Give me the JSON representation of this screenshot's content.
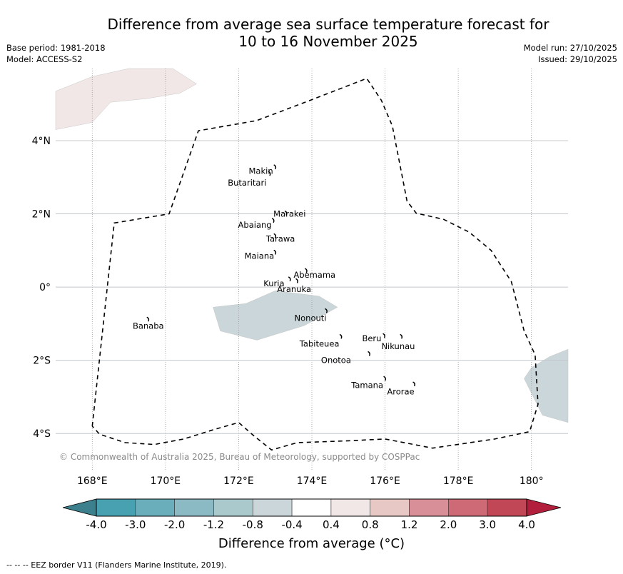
{
  "header": {
    "title_line1": "Difference from average sea surface temperature forecast for",
    "title_line2": "10 to 16 November 2025",
    "base_period": "Base period: 1981-2018",
    "model": "Model: ACCESS-S2",
    "model_run": "Model run: 27/10/2025",
    "issued": "Issued: 29/10/2025"
  },
  "map": {
    "lon_range": [
      167,
      181
    ],
    "lat_range": [
      -5.03,
      5.97
    ],
    "lon_ticks": [
      {
        "value": 168,
        "label": "168°E"
      },
      {
        "value": 170,
        "label": "170°E"
      },
      {
        "value": 172,
        "label": "172°E"
      },
      {
        "value": 174,
        "label": "174°E"
      },
      {
        "value": 176,
        "label": "176°E"
      },
      {
        "value": 178,
        "label": "178°E"
      },
      {
        "value": 180,
        "label": "180°"
      }
    ],
    "lat_ticks": [
      {
        "value": 4,
        "label": "4°N"
      },
      {
        "value": 2,
        "label": "2°N"
      },
      {
        "value": 0,
        "label": "0°"
      },
      {
        "value": -2,
        "label": "2°S"
      },
      {
        "value": -4,
        "label": "4°S"
      }
    ],
    "copyright": "© Commonwealth of Australia 2025, Bureau of Meteorology, supported by COSPPac",
    "anomaly_regions": [
      {
        "name": "northwest-warm-patch",
        "category": "0.4 to 0.8",
        "color": "#f1e7e6",
        "points": [
          [
            167,
            5.35
          ],
          [
            168,
            5.75
          ],
          [
            169,
            5.97
          ],
          [
            170.2,
            5.97
          ],
          [
            170.85,
            5.55
          ],
          [
            170.4,
            5.3
          ],
          [
            169.5,
            5.15
          ],
          [
            168.5,
            5.05
          ],
          [
            168,
            4.5
          ],
          [
            167,
            4.3
          ]
        ]
      },
      {
        "name": "central-cool-patch",
        "category": "-0.8 to -0.4",
        "color": "#cad6da",
        "points": [
          [
            172.2,
            -0.45
          ],
          [
            173,
            -0.1
          ],
          [
            174.2,
            -0.25
          ],
          [
            174.7,
            -0.55
          ],
          [
            173.8,
            -1.05
          ],
          [
            172.5,
            -1.45
          ],
          [
            171.5,
            -1.2
          ],
          [
            171.3,
            -0.55
          ]
        ]
      },
      {
        "name": "east-cool-patch",
        "category": "-0.8 to -0.4",
        "color": "#cad6da",
        "points": [
          [
            181,
            -1.7
          ],
          [
            180.5,
            -1.9
          ],
          [
            180,
            -2.2
          ],
          [
            179.8,
            -2.5
          ],
          [
            180.3,
            -3.5
          ],
          [
            181,
            -3.7
          ]
        ]
      }
    ],
    "eez_border": [
      [
        168,
        -3.8
      ],
      [
        168.6,
        1.75
      ],
      [
        170.1,
        2
      ],
      [
        170.9,
        4.27
      ],
      [
        172.5,
        4.55
      ],
      [
        174,
        5.12
      ],
      [
        175.5,
        5.7
      ],
      [
        175.9,
        5.1
      ],
      [
        176.2,
        4.4
      ],
      [
        176.6,
        2.35
      ],
      [
        176.85,
        2.02
      ],
      [
        177.6,
        1.85
      ],
      [
        178.3,
        1.5
      ],
      [
        178.9,
        1
      ],
      [
        179.45,
        0.15
      ],
      [
        179.8,
        -1.2
      ],
      [
        180.1,
        -1.85
      ],
      [
        180.18,
        -3.2
      ],
      [
        179.95,
        -3.95
      ],
      [
        179,
        -4.15
      ],
      [
        177.3,
        -4.4
      ],
      [
        176,
        -4.15
      ],
      [
        175,
        -4.2
      ],
      [
        173.6,
        -4.25
      ],
      [
        172.9,
        -4.45
      ],
      [
        172.4,
        -4.05
      ],
      [
        172,
        -3.7
      ],
      [
        171.3,
        -3.9
      ],
      [
        170.5,
        -4.15
      ],
      [
        169.7,
        -4.3
      ],
      [
        168.9,
        -4.25
      ],
      [
        168.2,
        -4.02
      ],
      [
        168,
        -3.8
      ]
    ],
    "islands": [
      {
        "name": "Makin",
        "lon": 173,
        "lat": 3.28,
        "label_lon": 172.94,
        "label_lat": 3.17,
        "anchor": "end"
      },
      {
        "name": "Butaritari",
        "lon": 172.85,
        "lat": 3.1,
        "label_lon": 172.76,
        "label_lat": 2.85,
        "anchor": "end"
      },
      {
        "name": "Marakei",
        "lon": 173.3,
        "lat": 2.02,
        "label_lon": 172.95,
        "label_lat": 2.0,
        "anchor": "start"
      },
      {
        "name": "Abaiang",
        "lon": 172.95,
        "lat": 1.82,
        "label_lon": 172.9,
        "label_lat": 1.7,
        "anchor": "end"
      },
      {
        "name": "Tarawa",
        "lon": 173.0,
        "lat": 1.4,
        "label_lon": 172.75,
        "label_lat": 1.32,
        "anchor": "start"
      },
      {
        "name": "Maiana",
        "lon": 173.0,
        "lat": 0.95,
        "label_lon": 172.97,
        "label_lat": 0.85,
        "anchor": "end"
      },
      {
        "name": "Abemama",
        "lon": 173.85,
        "lat": 0.45,
        "label_lon": 173.5,
        "label_lat": 0.33,
        "anchor": "start"
      },
      {
        "name": "Kuria",
        "lon": 173.4,
        "lat": 0.22,
        "label_lon": 173.25,
        "label_lat": 0.1,
        "anchor": "end"
      },
      {
        "name": "Aranuka",
        "lon": 173.6,
        "lat": 0.17,
        "label_lon": 172.06,
        "label_lat": -0.06,
        "anchor": "start",
        "label_abs_lon": 173.05
      },
      {
        "name": "Nonouti",
        "lon": 174.4,
        "lat": -0.65,
        "label_lon": 174.4,
        "label_lat": -0.85,
        "anchor": "end"
      },
      {
        "name": "Tabiteuea",
        "lon": 174.8,
        "lat": -1.35,
        "label_lon": 174.75,
        "label_lat": -1.55,
        "anchor": "end"
      },
      {
        "name": "Beru",
        "lon": 175.98,
        "lat": -1.33,
        "label_lon": 175.9,
        "label_lat": -1.4,
        "anchor": "end"
      },
      {
        "name": "Nikunau",
        "lon": 176.45,
        "lat": -1.35,
        "label_lon": 175.9,
        "label_lat": -1.62,
        "anchor": "start"
      },
      {
        "name": "Onotoa",
        "lon": 175.57,
        "lat": -1.82,
        "label_lon": 175.07,
        "label_lat": -2.0,
        "anchor": "end"
      },
      {
        "name": "Tamana",
        "lon": 176.0,
        "lat": -2.5,
        "label_lon": 175.95,
        "label_lat": -2.68,
        "anchor": "end"
      },
      {
        "name": "Arorae",
        "lon": 176.8,
        "lat": -2.65,
        "label_lon": 176.8,
        "label_lat": -2.86,
        "anchor": "end"
      },
      {
        "name": "Banaba",
        "lon": 169.53,
        "lat": -0.88,
        "label_lon": 169.53,
        "label_lat": -1.06,
        "anchor": "middle"
      }
    ]
  },
  "colorbar": {
    "label": "Difference from average (°C)",
    "under_color": "#3b808c",
    "over_color": "#b11f3c",
    "ticks": [
      "-4.0",
      "-3.0",
      "-2.0",
      "-1.2",
      "-0.8",
      "-0.4",
      "0.4",
      "0.8",
      "1.2",
      "2.0",
      "3.0",
      "4.0"
    ],
    "colors": [
      "#47a1b0",
      "#6aaebb",
      "#8bbac5",
      "#a9c9cd",
      "#cad6da",
      "#ffffff",
      "#f1e7e6",
      "#e8c8c4",
      "#d88f98",
      "#cd6a76",
      "#c14757"
    ]
  },
  "footer": {
    "eez_note": "--  --  -- EEZ border V11 (Flanders Marine Institute, 2019)."
  }
}
